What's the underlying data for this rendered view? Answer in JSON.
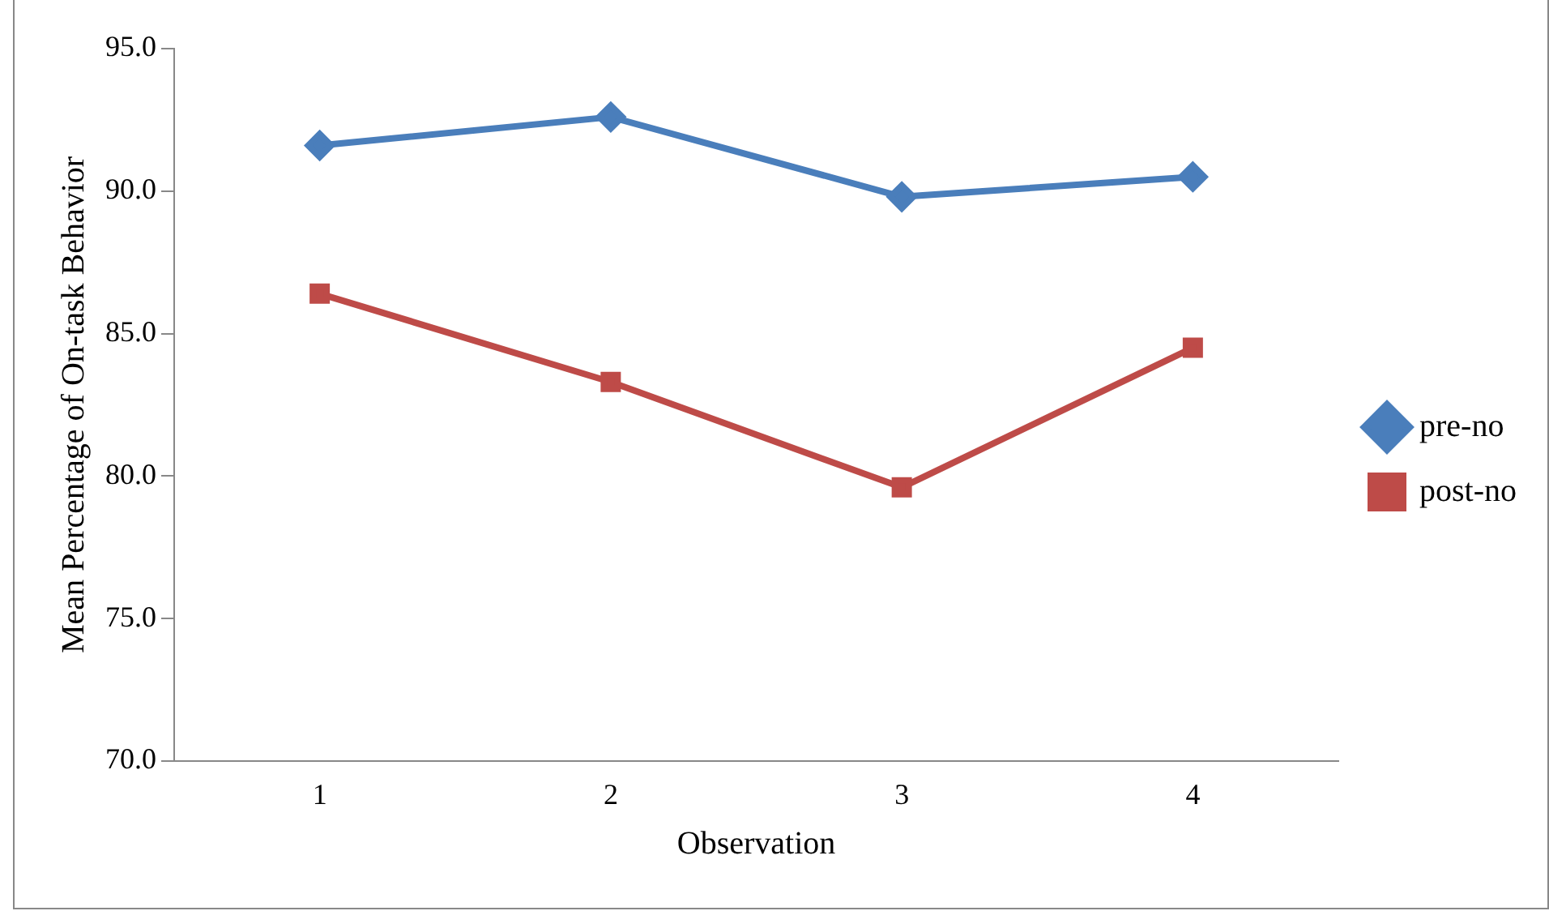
{
  "chart_data": {
    "type": "line",
    "xlabel": "Observation",
    "ylabel": "Mean Percentage of On-task Behavior",
    "categories": [
      "1",
      "2",
      "3",
      "4"
    ],
    "series": [
      {
        "name": "pre-no",
        "color": "#4a7ebb",
        "marker": "diamond",
        "values": [
          91.6,
          92.6,
          89.8,
          90.5
        ]
      },
      {
        "name": "post-no",
        "color": "#be4b48",
        "marker": "square",
        "values": [
          86.4,
          83.3,
          79.6,
          84.5
        ]
      }
    ],
    "ylim": [
      70,
      95
    ],
    "yticks": [
      {
        "value": 70,
        "label": "70.0"
      },
      {
        "value": 75,
        "label": "75.0"
      },
      {
        "value": 80,
        "label": "80.0"
      },
      {
        "value": 85,
        "label": "85.0"
      },
      {
        "value": 90,
        "label": "90.0"
      },
      {
        "value": 95,
        "label": "95.0"
      }
    ],
    "grid": false,
    "legend": "right",
    "line_style": "solid"
  }
}
